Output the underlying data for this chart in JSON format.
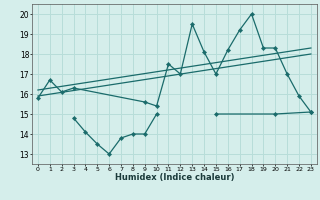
{
  "xlabel": "Humidex (Indice chaleur)",
  "line1_x": [
    0,
    1,
    2,
    3,
    9,
    10,
    11,
    12,
    13,
    14,
    15,
    16,
    17,
    18,
    19,
    20,
    21,
    22,
    23
  ],
  "line1_y": [
    15.8,
    16.7,
    16.1,
    16.3,
    15.6,
    15.4,
    17.5,
    17.0,
    19.5,
    18.1,
    17.0,
    18.2,
    19.2,
    20.0,
    18.3,
    18.3,
    17.0,
    15.9,
    15.1
  ],
  "line2_x": [
    3,
    4,
    5,
    6,
    7,
    8,
    9,
    10,
    15,
    20,
    23
  ],
  "line2_y": [
    14.8,
    14.1,
    13.5,
    13.0,
    13.8,
    14.0,
    14.0,
    15.0,
    15.0,
    15.0,
    15.1
  ],
  "trend1_x": [
    0,
    23
  ],
  "trend1_y": [
    16.2,
    18.3
  ],
  "trend2_x": [
    0,
    23
  ],
  "trend2_y": [
    15.9,
    18.0
  ],
  "bg_color": "#d5eeeb",
  "grid_color": "#b8ddd9",
  "line_color": "#1a6b6b",
  "ylim": [
    12.5,
    20.5
  ],
  "yticks": [
    13,
    14,
    15,
    16,
    17,
    18,
    19,
    20
  ],
  "xlim": [
    -0.5,
    23.5
  ],
  "xticks": [
    0,
    1,
    2,
    3,
    4,
    5,
    6,
    7,
    8,
    9,
    10,
    11,
    12,
    13,
    14,
    15,
    16,
    17,
    18,
    19,
    20,
    21,
    22,
    23
  ]
}
